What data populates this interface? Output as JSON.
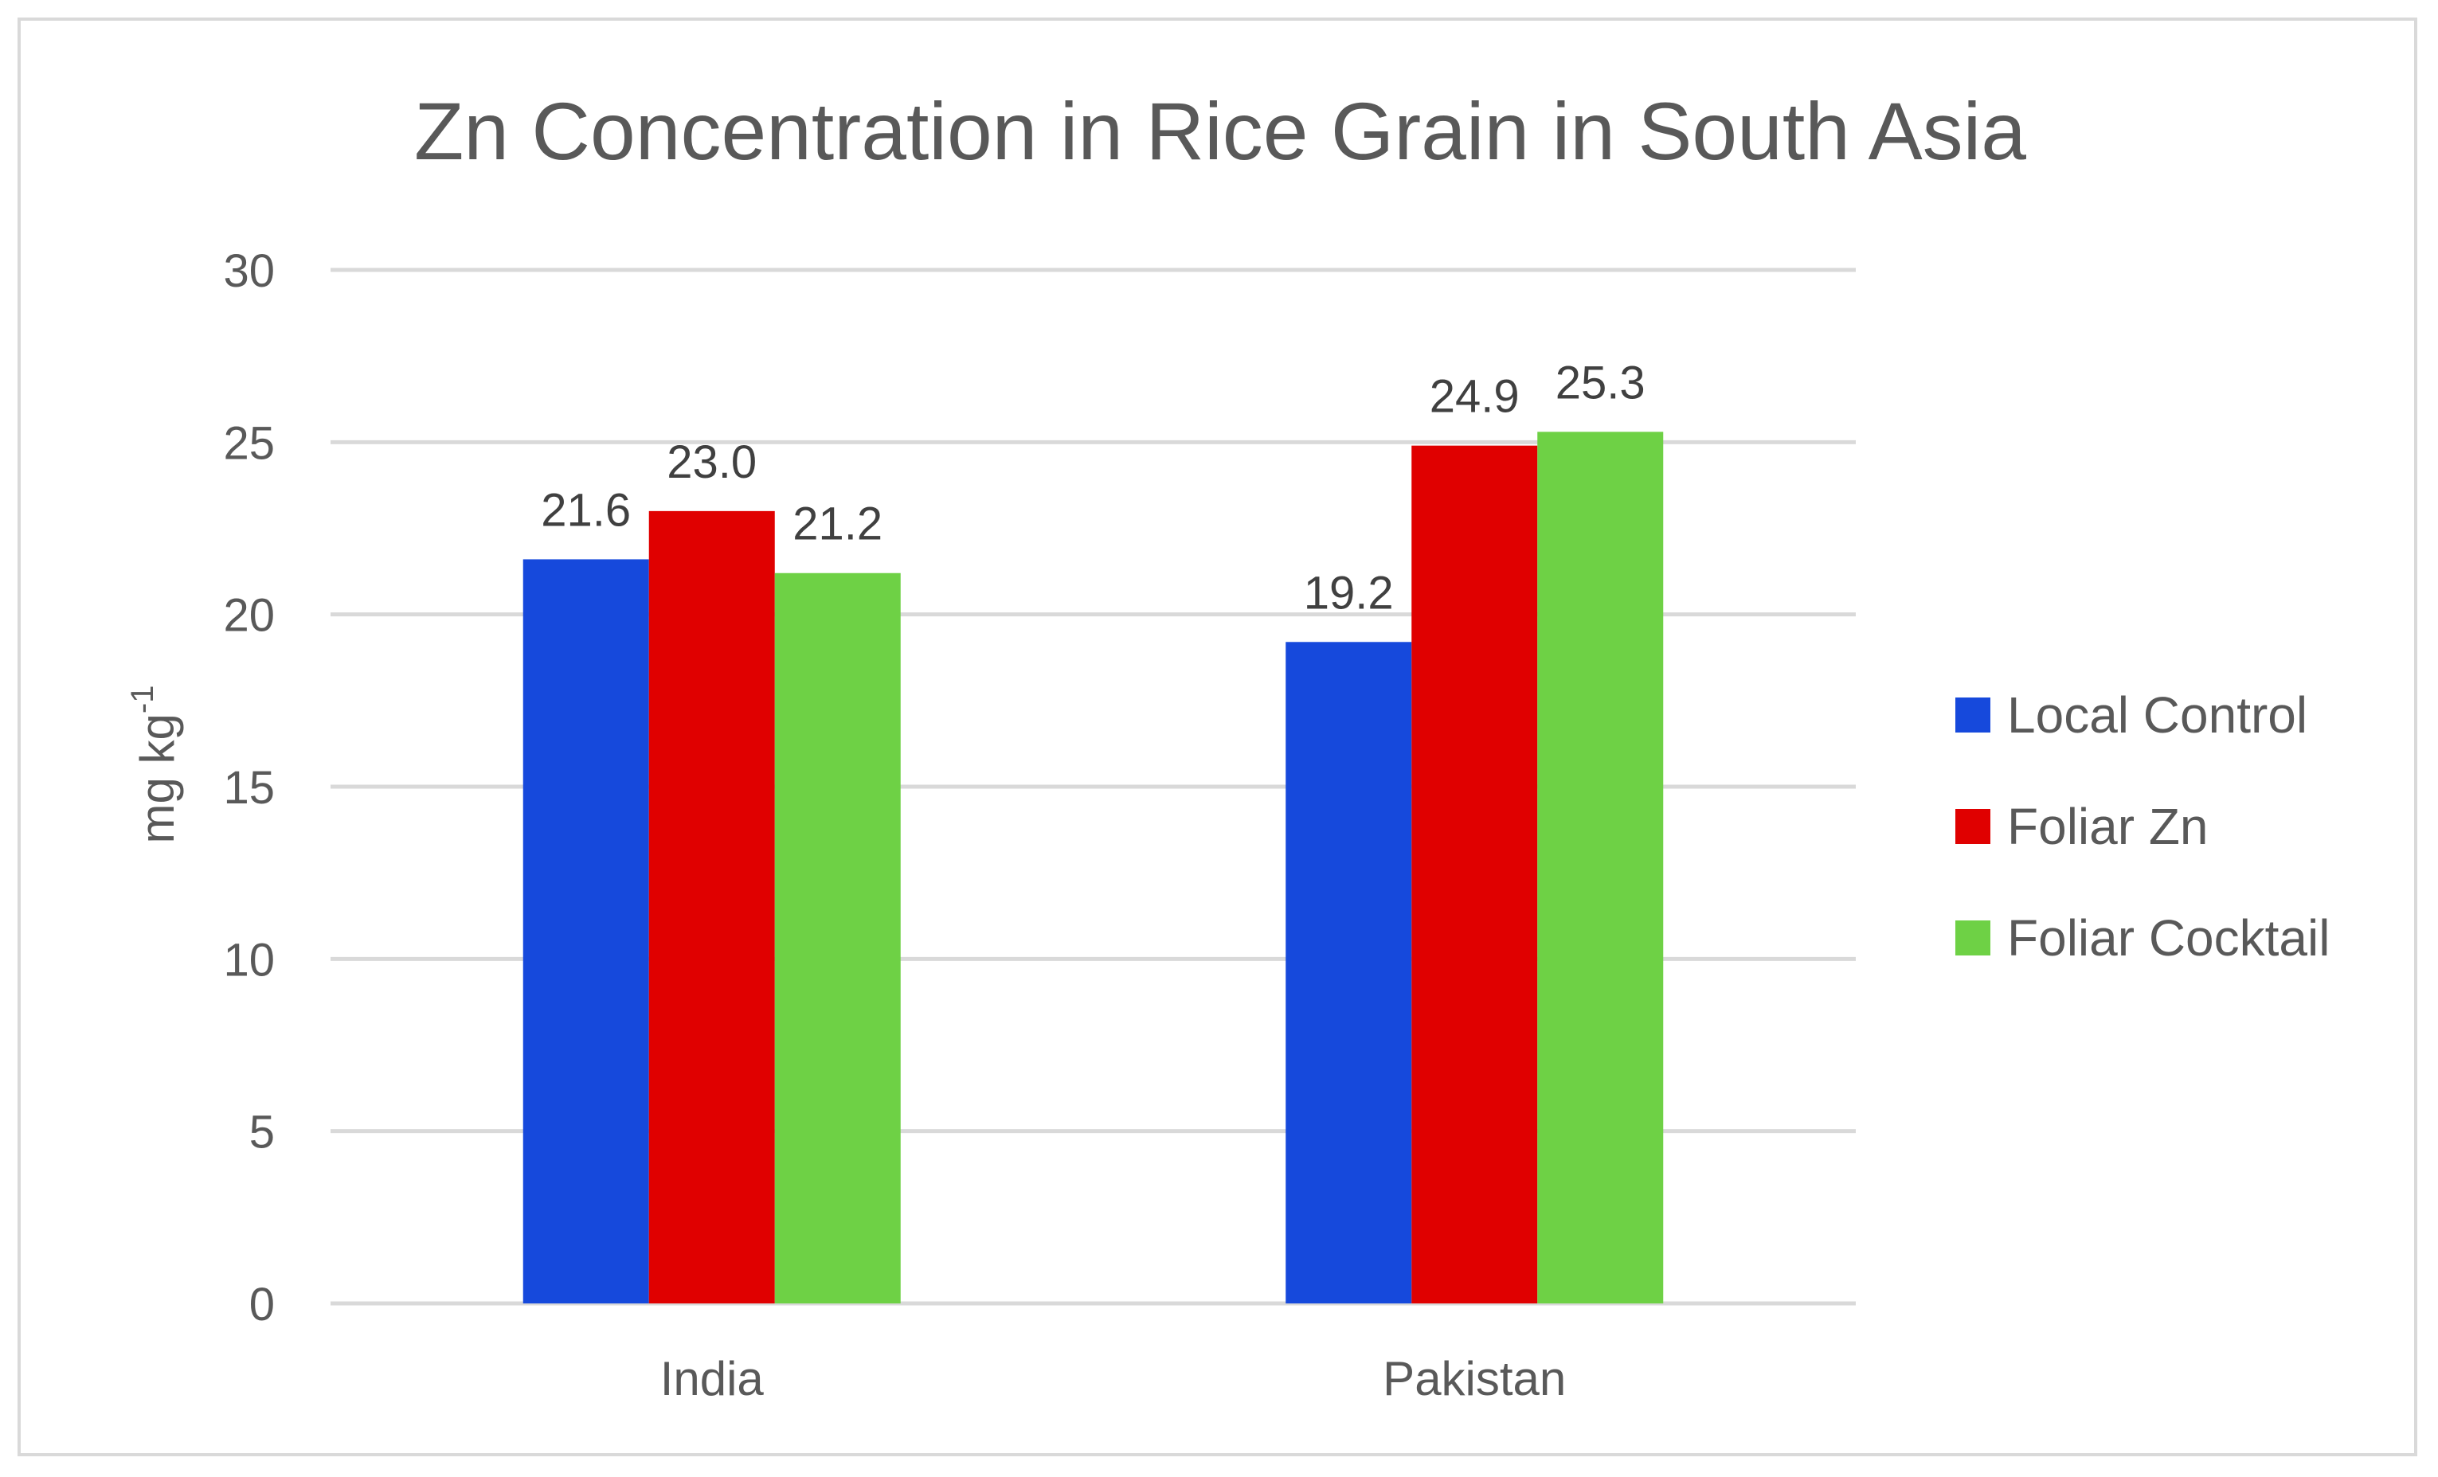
{
  "chart_data": {
    "type": "bar",
    "title": "Zn Concentration in Rice Grain in South Asia",
    "xlabel": "",
    "ylabel_main": "mg kg",
    "ylabel_superscript": "-1",
    "ylim": [
      0,
      30
    ],
    "yticks": [
      0,
      5,
      10,
      15,
      20,
      25,
      30
    ],
    "grid": true,
    "legend_position": "right",
    "categories": [
      "India",
      "Pakistan"
    ],
    "series": [
      {
        "name": "Local Control",
        "color": "#1649dc",
        "values": [
          21.6,
          19.2
        ],
        "labels": [
          "21.6",
          "19.2"
        ]
      },
      {
        "name": "Foliar Zn",
        "color": "#e00000",
        "values": [
          23.0,
          24.9
        ],
        "labels": [
          "23.0",
          "24.9"
        ]
      },
      {
        "name": "Foliar Cocktail",
        "color": "#6ed145",
        "values": [
          21.2,
          25.3
        ],
        "labels": [
          "21.2",
          "25.3"
        ]
      }
    ]
  }
}
